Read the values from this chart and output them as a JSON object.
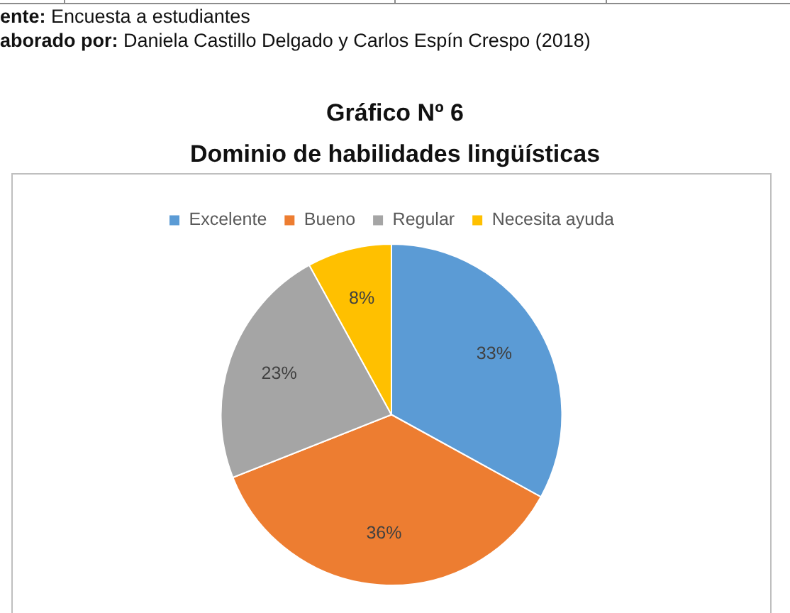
{
  "chart_data": {
    "type": "pie",
    "title": "Gráfico Nº 6",
    "subtitle": "Dominio de habilidades lingüísticas",
    "annotations": [
      "ente: Encuesta a estudiantes",
      "aborado por: Daniela Castillo Delgado y Carlos Espín Crespo (2018)"
    ],
    "categories": [
      "Excelente",
      "Bueno",
      "Regular",
      "Necesita ayuda"
    ],
    "values": [
      33,
      36,
      23,
      8
    ],
    "colors": [
      "#5b9bd5",
      "#ed7d31",
      "#a5a5a5",
      "#ffc000"
    ],
    "value_labels": [
      "33%",
      "36%",
      "23%",
      "8%"
    ],
    "legend": "top"
  }
}
